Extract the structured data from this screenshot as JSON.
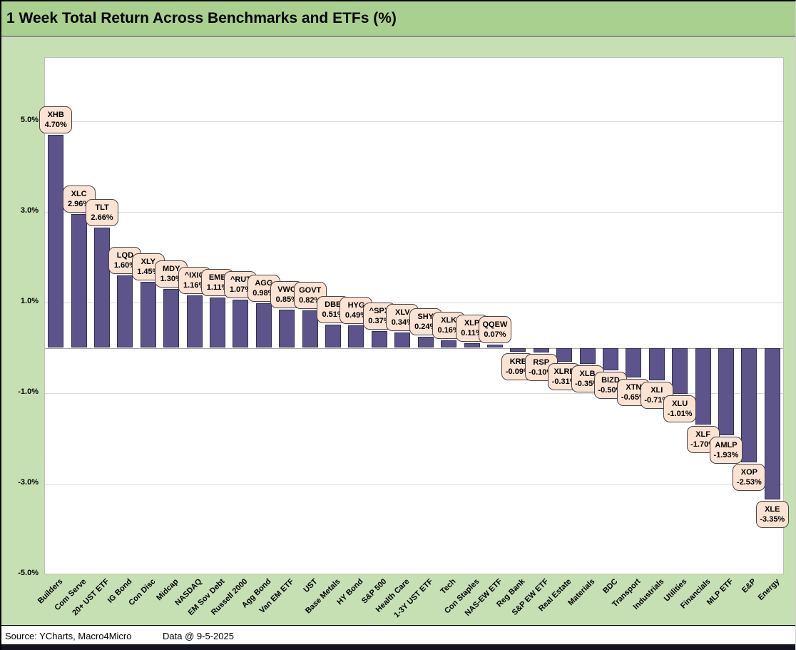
{
  "title": "1 Week Total Return Across Benchmarks and ETFs (%)",
  "footer": {
    "source": "Source: YCharts, Macro4Micro",
    "data_date": "Data @ 9-5-2025"
  },
  "colors": {
    "page_bg": "#c6e0b4",
    "title_bg": "#a9d08e",
    "plot_bg": "#ffffff",
    "bar_fill": "#5c548b",
    "bar_border": "#332e4d",
    "callout_bg": "#fbe3d4",
    "callout_border": "#4a4444",
    "gridline": "#d9d9d9",
    "zero_line": "#a6a6a6",
    "bottom_strip": "#14141c"
  },
  "chart_data": {
    "type": "bar",
    "title": "1 Week Total Return Across Benchmarks and ETFs (%)",
    "xlabel": "",
    "ylabel": "",
    "ylim": [
      -5.0,
      6.4
    ],
    "grid": "horizontal",
    "legend_position": "none",
    "y_ticks": [
      {
        "label": "5.0%",
        "value": 5.0
      },
      {
        "label": "3.0%",
        "value": 3.0
      },
      {
        "label": "1.0%",
        "value": 1.0
      },
      {
        "label": "-1.0%",
        "value": -1.0
      },
      {
        "label": "-3.0%",
        "value": -3.0
      },
      {
        "label": "-5.0%",
        "value": -5.0
      }
    ],
    "points": [
      {
        "category": "Builders",
        "ticker": "XHB",
        "value": 4.7,
        "label": "4.70%"
      },
      {
        "category": "Com Serve",
        "ticker": "XLC",
        "value": 2.96,
        "label": "2.96%"
      },
      {
        "category": "20+ UST ETF",
        "ticker": "TLT",
        "value": 2.66,
        "label": "2.66%"
      },
      {
        "category": "IG Bond",
        "ticker": "LQD",
        "value": 1.6,
        "label": "1.60%"
      },
      {
        "category": "Con Disc",
        "ticker": "XLY",
        "value": 1.45,
        "label": "1.45%"
      },
      {
        "category": "Midcap",
        "ticker": "MDY",
        "value": 1.3,
        "label": "1.30%"
      },
      {
        "category": "NASDAQ",
        "ticker": "^IXIC",
        "value": 1.16,
        "label": "1.16%"
      },
      {
        "category": "EM Sov Debt",
        "ticker": "EMB",
        "value": 1.11,
        "label": "1.11%"
      },
      {
        "category": "Russell 2000",
        "ticker": "^RUT",
        "value": 1.07,
        "label": "1.07%"
      },
      {
        "category": "Agg Bond",
        "ticker": "AGG",
        "value": 0.98,
        "label": "0.98%"
      },
      {
        "category": "Van EM ETF",
        "ticker": "VWO",
        "value": 0.85,
        "label": "0.85%"
      },
      {
        "category": "UST",
        "ticker": "GOVT",
        "value": 0.82,
        "label": "0.82%"
      },
      {
        "category": "Base Metals",
        "ticker": "DBB",
        "value": 0.51,
        "label": "0.51%"
      },
      {
        "category": "HY Bond",
        "ticker": "HYG",
        "value": 0.49,
        "label": "0.49%"
      },
      {
        "category": "S&P 500",
        "ticker": "^SPX",
        "value": 0.37,
        "label": "0.37%"
      },
      {
        "category": "Health Care",
        "ticker": "XLV",
        "value": 0.34,
        "label": "0.34%"
      },
      {
        "category": "1-3Y UST ETF",
        "ticker": "SHY",
        "value": 0.24,
        "label": "0.24%"
      },
      {
        "category": "Tech",
        "ticker": "XLK",
        "value": 0.16,
        "label": "0.16%"
      },
      {
        "category": "Con Staples",
        "ticker": "XLP",
        "value": 0.11,
        "label": "0.11%"
      },
      {
        "category": "NAS-EW ETF",
        "ticker": "QQEW",
        "value": 0.07,
        "label": "0.07%"
      },
      {
        "category": "Reg Bank",
        "ticker": "KRE",
        "value": -0.09,
        "label": "-0.09%"
      },
      {
        "category": "S&P EW ETF",
        "ticker": "RSP",
        "value": -0.1,
        "label": "-0.10%"
      },
      {
        "category": "Real Estate",
        "ticker": "XLRE",
        "value": -0.31,
        "label": "-0.31%"
      },
      {
        "category": "Materials",
        "ticker": "XLB",
        "value": -0.35,
        "label": "-0.35%"
      },
      {
        "category": "BDC",
        "ticker": "BIZD",
        "value": -0.5,
        "label": "-0.50%"
      },
      {
        "category": "Transport",
        "ticker": "XTN",
        "value": -0.65,
        "label": "-0.65%"
      },
      {
        "category": "Industrials",
        "ticker": "XLI",
        "value": -0.71,
        "label": "-0.71%"
      },
      {
        "category": "Utilities",
        "ticker": "XLU",
        "value": -1.01,
        "label": "-1.01%"
      },
      {
        "category": "Financials",
        "ticker": "XLF",
        "value": -1.7,
        "label": "-1.70%"
      },
      {
        "category": "MLP ETF",
        "ticker": "AMLP",
        "value": -1.93,
        "label": "-1.93%"
      },
      {
        "category": "E&P",
        "ticker": "XOP",
        "value": -2.53,
        "label": "-2.53%"
      },
      {
        "category": "Energy",
        "ticker": "XLE",
        "value": -3.35,
        "label": "-3.35%"
      }
    ]
  }
}
